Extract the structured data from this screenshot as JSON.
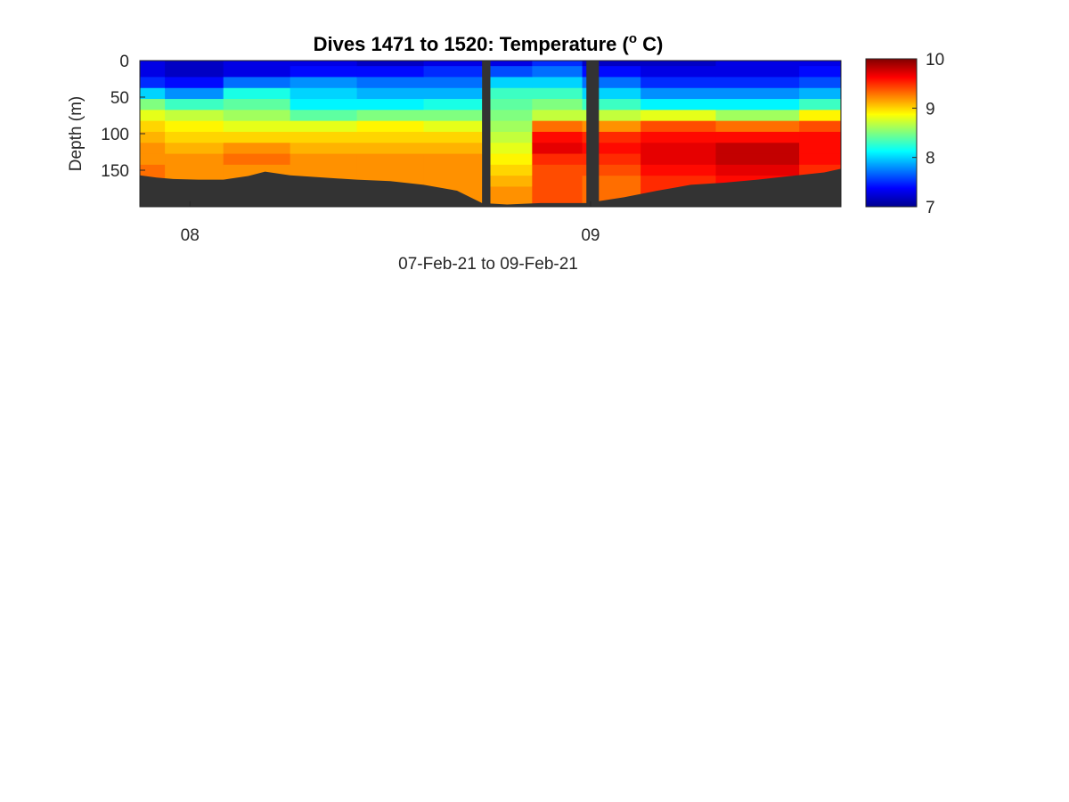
{
  "chart_data": {
    "type": "heatmap",
    "title": {
      "main": "Dives 1471 to 1520: Temperature (",
      "sup": "o",
      "unit": " C)"
    },
    "xlabel": "07-Feb-21 to 09-Feb-21",
    "ylabel": "Depth (m)",
    "x_range": [
      "2021-02-07 21:00",
      "2021-02-09 15:00"
    ],
    "x_ticks": [
      {
        "date": "2021-02-08 00:00",
        "label": "08"
      },
      {
        "date": "2021-02-09 00:00",
        "label": "09"
      }
    ],
    "y_range": [
      0,
      200
    ],
    "y_reversed": true,
    "y_ticks": [
      0,
      50,
      100,
      150
    ],
    "colorbar": {
      "colormap": "jet",
      "range": [
        7,
        10
      ],
      "ticks": [
        7,
        8,
        9,
        10
      ],
      "position": "right"
    },
    "no_data_color": "#333333",
    "data_gaps": [
      {
        "start": "2021-02-08 17:30",
        "end": "2021-02-08 18:00"
      },
      {
        "start": "2021-02-08 23:45",
        "end": "2021-02-09 00:30"
      }
    ],
    "bottom_depth_profile": {
      "time": [
        "2021-02-07 21:00",
        "2021-02-07 22:00",
        "2021-02-07 23:00",
        "2021-02-08 00:30",
        "2021-02-08 02:00",
        "2021-02-08 03:30",
        "2021-02-08 04:30",
        "2021-02-08 06:00",
        "2021-02-08 08:00",
        "2021-02-08 10:00",
        "2021-02-08 12:00",
        "2021-02-08 14:00",
        "2021-02-08 16:00",
        "2021-02-08 17:30",
        "2021-02-08 19:00",
        "2021-02-08 21:00",
        "2021-02-08 23:45",
        "2021-02-09 02:00",
        "2021-02-09 04:00",
        "2021-02-09 06:00",
        "2021-02-09 08:00",
        "2021-02-09 10:00",
        "2021-02-09 12:00",
        "2021-02-09 14:00",
        "2021-02-09 15:00"
      ],
      "depth": [
        157,
        160,
        162,
        163,
        163,
        158,
        152,
        157,
        160,
        163,
        165,
        170,
        178,
        195,
        197,
        195,
        195,
        187,
        178,
        170,
        167,
        163,
        158,
        153,
        148
      ]
    },
    "temperature_profiles": {
      "time": [
        "2021-02-07 21:00",
        "2021-02-08 00:00",
        "2021-02-08 04:00",
        "2021-02-08 08:00",
        "2021-02-08 12:00",
        "2021-02-08 16:00",
        "2021-02-08 19:00",
        "2021-02-08 22:00",
        "2021-02-09 01:00",
        "2021-02-09 05:00",
        "2021-02-09 10:00",
        "2021-02-09 15:00"
      ],
      "depth": [
        0,
        15,
        30,
        45,
        60,
        75,
        90,
        105,
        120,
        135,
        150,
        165,
        180,
        195
      ],
      "temperature_C": [
        [
          7.3,
          7.3,
          7.5,
          8.0,
          8.5,
          8.8,
          9.0,
          9.1,
          9.2,
          9.2,
          9.3,
          9.3,
          9.3,
          9.3
        ],
        [
          7.2,
          7.2,
          7.4,
          7.8,
          8.3,
          8.7,
          8.9,
          9.0,
          9.1,
          9.2,
          9.2,
          9.2,
          9.2,
          9.2
        ],
        [
          7.3,
          7.3,
          7.7,
          8.2,
          8.4,
          8.6,
          8.8,
          9.0,
          9.2,
          9.3,
          9.2,
          9.2,
          9.2,
          9.2
        ],
        [
          7.3,
          7.4,
          7.8,
          8.0,
          8.1,
          8.4,
          8.8,
          9.0,
          9.1,
          9.2,
          9.2,
          9.2,
          9.2,
          9.2
        ],
        [
          7.2,
          7.4,
          7.7,
          7.9,
          8.1,
          8.5,
          8.9,
          9.0,
          9.1,
          9.2,
          9.2,
          9.2,
          9.2,
          9.2
        ],
        [
          7.3,
          7.5,
          7.7,
          7.9,
          8.2,
          8.5,
          8.8,
          9.0,
          9.1,
          9.2,
          9.2,
          9.2,
          9.2,
          9.2
        ],
        [
          7.3,
          7.6,
          8.0,
          8.3,
          8.4,
          8.5,
          8.6,
          8.7,
          8.8,
          8.9,
          9.0,
          9.1,
          9.2,
          9.2
        ],
        [
          7.5,
          7.7,
          8.0,
          8.3,
          8.5,
          8.7,
          9.3,
          9.6,
          9.7,
          9.5,
          9.4,
          9.4,
          9.4,
          9.4
        ],
        [
          7.2,
          7.4,
          7.7,
          8.0,
          8.3,
          8.7,
          9.2,
          9.5,
          9.6,
          9.5,
          9.4,
          9.3,
          9.3,
          9.3
        ],
        [
          7.2,
          7.3,
          7.5,
          7.8,
          8.1,
          8.8,
          9.4,
          9.6,
          9.7,
          9.7,
          9.6,
          9.5,
          9.5,
          9.5
        ],
        [
          7.3,
          7.3,
          7.5,
          7.8,
          8.1,
          8.6,
          9.3,
          9.6,
          9.8,
          9.8,
          9.7,
          9.6,
          9.6,
          9.6
        ],
        [
          7.3,
          7.4,
          7.6,
          7.9,
          8.3,
          8.9,
          9.4,
          9.6,
          9.6,
          9.6,
          9.5,
          9.5,
          9.5,
          9.5
        ]
      ]
    }
  }
}
